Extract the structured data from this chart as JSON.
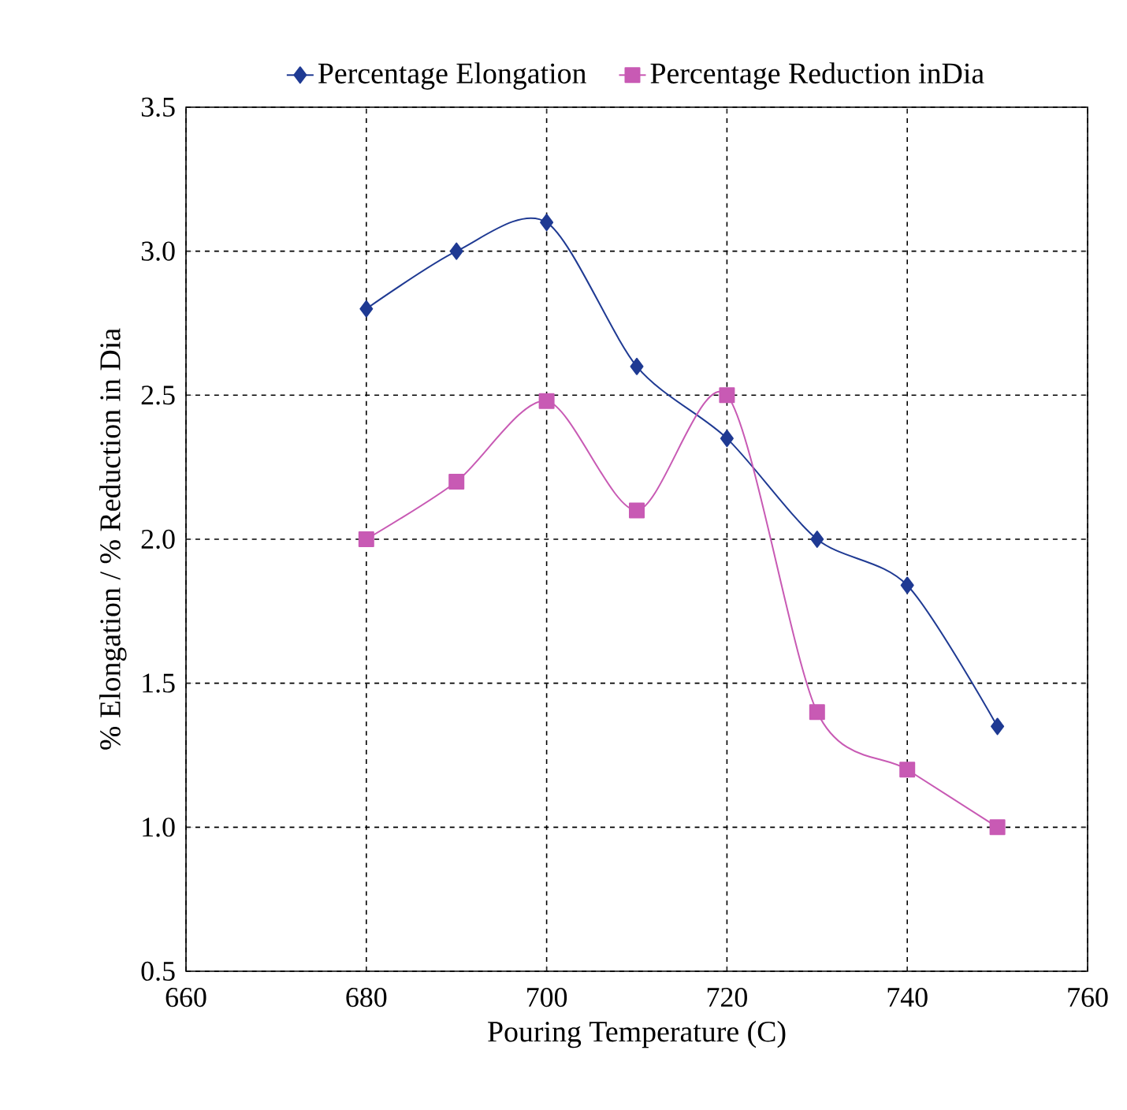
{
  "chart_data": {
    "type": "line",
    "xlabel": "Pouring Temperature (C)",
    "ylabel": "% Elongation / % Reduction in Dia",
    "x": [
      680,
      690,
      700,
      710,
      720,
      730,
      740,
      750
    ],
    "series": [
      {
        "name": "Percentage Elongation",
        "color": "#1f3a93",
        "marker": "diamond",
        "values": [
          2.8,
          3.0,
          3.1,
          2.6,
          2.35,
          2.0,
          1.84,
          1.35
        ]
      },
      {
        "name": "Percentage Reduction inDia",
        "color": "#c85ab4",
        "marker": "square",
        "values": [
          2.0,
          2.2,
          2.48,
          2.1,
          2.5,
          1.4,
          1.2,
          1.0
        ]
      }
    ],
    "xlim": [
      660,
      760
    ],
    "xticks": [
      660,
      680,
      700,
      720,
      740,
      760
    ],
    "ylim": [
      0.5,
      3.5
    ],
    "yticks": [
      {
        "value": 0.5,
        "label": "0.5"
      },
      {
        "value": 1.0,
        "label": "1.0"
      },
      {
        "value": 1.5,
        "label": "1.5"
      },
      {
        "value": 2.0,
        "label": "2.0"
      },
      {
        "value": 2.5,
        "label": "2.5"
      },
      {
        "value": 3.0,
        "label": "3.0"
      },
      {
        "value": 3.5,
        "label": "3.5"
      }
    ],
    "grid": true,
    "legend": "top"
  }
}
